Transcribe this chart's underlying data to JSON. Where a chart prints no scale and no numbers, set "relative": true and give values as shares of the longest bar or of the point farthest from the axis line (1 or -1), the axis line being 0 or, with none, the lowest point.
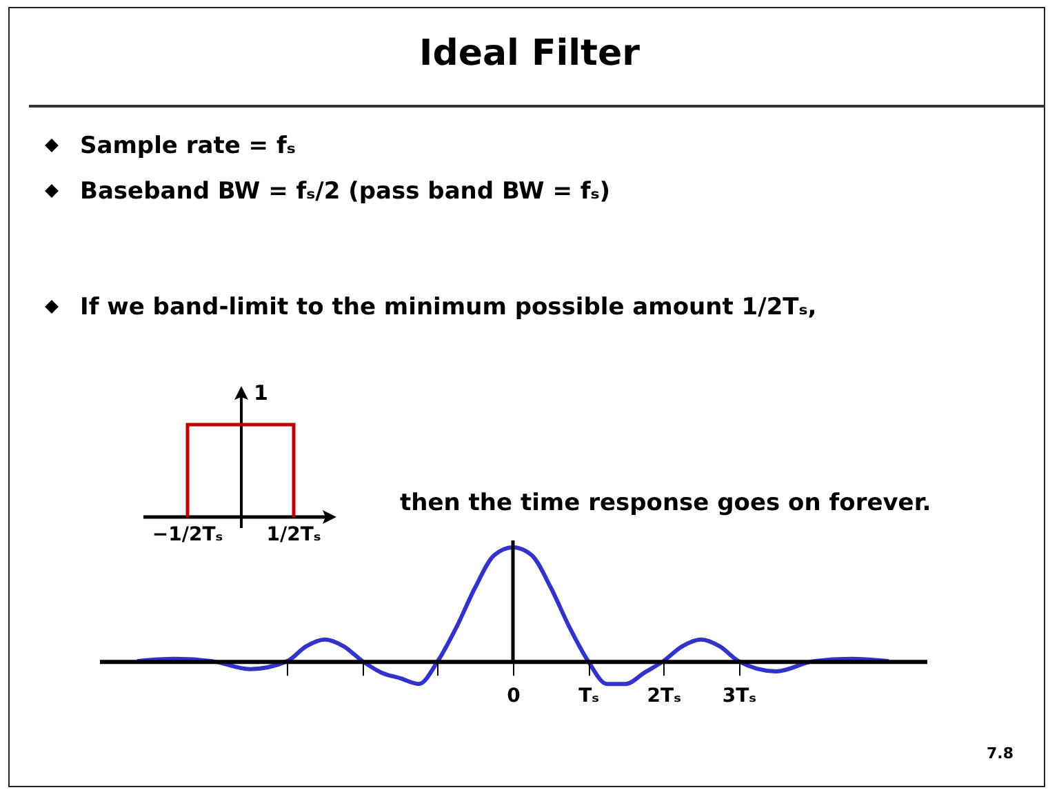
{
  "chart_data": {
    "type": "line",
    "title": "Ideal Filter",
    "relative": true,
    "annotations": [
      "Sample rate = fₛ",
      "Baseband BW = fₛ/2 (pass band BW = fₛ)",
      "If we band-limit to the minimum possible amount 1/2Tₛ,",
      "1",
      "−1/2Tₛ",
      "1/2Tₛ",
      "then the time response goes on forever.",
      "7.8"
    ],
    "xlim": [
      -5.5,
      5.5
    ],
    "xticks": [
      {
        "value": -3,
        "label": null
      },
      {
        "value": -2,
        "label": null
      },
      {
        "value": -1,
        "label": null
      },
      0,
      {
        "value": 1,
        "label": "Tₛ"
      },
      {
        "value": 2,
        "label": "2Tₛ"
      },
      {
        "value": 3,
        "label": "3Tₛ"
      }
    ],
    "ref_lines": [
      {
        "axis": "x",
        "value": 0,
        "color": "#000000"
      }
    ],
    "series": [
      {
        "color": "#3333cc",
        "x": [
          -5,
          -4.5,
          -4,
          -3.5,
          -3,
          -2.75,
          -2.5,
          -2.25,
          -2,
          -1.75,
          -1.5,
          -1.25,
          -1,
          -0.75,
          -0.5,
          -0.25,
          0,
          0.25,
          0.5,
          0.75,
          1,
          1.25,
          1.5,
          1.75,
          2,
          2.25,
          2.5,
          2.75,
          3,
          3.5,
          4,
          4.5,
          5
        ],
        "values": [
          0,
          0.02,
          0,
          -0.07,
          0,
          0.13,
          0.19,
          0.13,
          0,
          -0.1,
          -0.15,
          -0.2,
          0,
          0.3,
          0.65,
          0.93,
          1,
          0.93,
          0.65,
          0.3,
          0,
          -0.2,
          -0.2,
          -0.1,
          0,
          0.13,
          0.19,
          0.13,
          0,
          -0.09,
          0,
          0.02,
          0
        ]
      }
    ]
  }
}
